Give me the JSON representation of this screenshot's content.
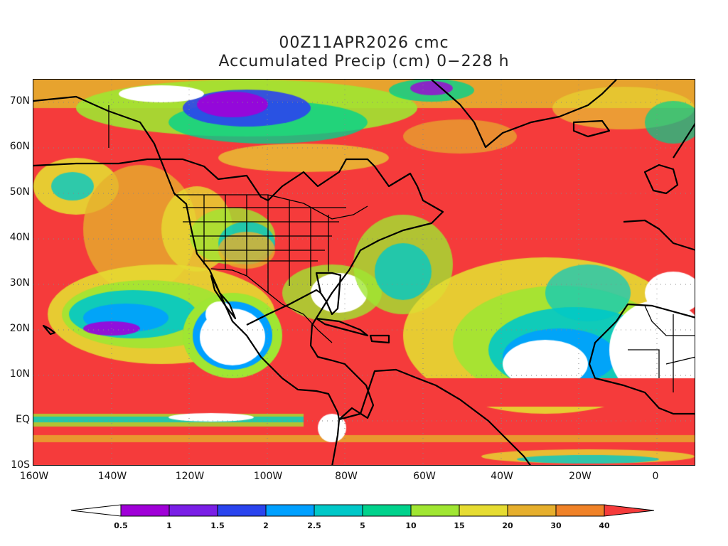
{
  "title": {
    "line1": "00Z11APR2026 cmc",
    "line2": "Accumulated Precip (cm) 0−228 h"
  },
  "axes": {
    "y_ticks": [
      "70N",
      "60N",
      "50N",
      "40N",
      "30N",
      "20N",
      "10N",
      "EQ",
      "10S"
    ],
    "x_ticks": [
      "160W",
      "140W",
      "120W",
      "100W",
      "80W",
      "60W",
      "40W",
      "20W",
      "0"
    ],
    "lon_range": [
      -160,
      10
    ],
    "lat_range": [
      -10,
      75
    ]
  },
  "colorbar": {
    "labels": [
      "0.5",
      "1",
      "1.5",
      "2",
      "2.5",
      "5",
      "10",
      "15",
      "20",
      "30",
      "40"
    ],
    "colors": [
      "#ffffff",
      "#a000d8",
      "#7a1fe6",
      "#2a44ee",
      "#00a0ff",
      "#00c8c8",
      "#00d28c",
      "#a0e632",
      "#e6dc32",
      "#e6af2d",
      "#f08228",
      "#f53b3b"
    ]
  },
  "map_features": {
    "land_outline_color": "#000000",
    "grid": "dotted"
  }
}
